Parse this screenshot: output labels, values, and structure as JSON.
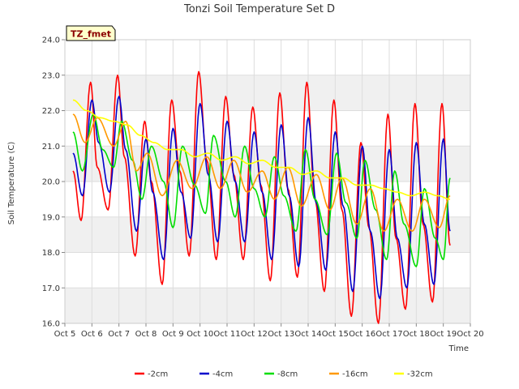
{
  "chart_data": {
    "type": "line",
    "title": "Tonzi Soil Temperature Set D",
    "xlabel": "Time",
    "ylabel": "Soil Temperature (C)",
    "badge": "TZ_fmet",
    "xlim": [
      5,
      20
    ],
    "ylim": [
      16.0,
      24.0
    ],
    "x_ticks": [
      {
        "v": 5,
        "label": "Oct 5"
      },
      {
        "v": 6,
        "label": "Oct 6"
      },
      {
        "v": 7,
        "label": "Oct 7"
      },
      {
        "v": 8,
        "label": "Oct 8"
      },
      {
        "v": 9,
        "label": "Oct 9"
      },
      {
        "v": 10,
        "label": "Oct 10"
      },
      {
        "v": 11,
        "label": "Oct 11"
      },
      {
        "v": 12,
        "label": "Oct 12"
      },
      {
        "v": 13,
        "label": "Oct 13"
      },
      {
        "v": 14,
        "label": "Oct 14"
      },
      {
        "v": 15,
        "label": "Oct 15"
      },
      {
        "v": 16,
        "label": "Oct 16"
      },
      {
        "v": 17,
        "label": "Oct 17"
      },
      {
        "v": 18,
        "label": "Oct 18"
      },
      {
        "v": 19,
        "label": "Oct 19"
      },
      {
        "v": 20,
        "label": "Oct 20"
      }
    ],
    "y_ticks": [
      {
        "v": 16,
        "label": "16.0"
      },
      {
        "v": 17,
        "label": "17.0"
      },
      {
        "v": 18,
        "label": "18.0"
      },
      {
        "v": 19,
        "label": "19.0"
      },
      {
        "v": 20,
        "label": "20.0"
      },
      {
        "v": 21,
        "label": "21.0"
      },
      {
        "v": 22,
        "label": "22.0"
      },
      {
        "v": 23,
        "label": "23.0"
      },
      {
        "v": 24,
        "label": "24.0"
      }
    ],
    "grid": true,
    "legend_position": "bottom",
    "series": [
      {
        "name": "-2cm",
        "color": "#ff0000",
        "x": [
          5.3,
          5.6,
          5.95,
          6.2,
          6.6,
          6.95,
          7.2,
          7.6,
          7.95,
          8.2,
          8.6,
          8.95,
          9.25,
          9.6,
          9.95,
          10.25,
          10.6,
          10.95,
          11.25,
          11.6,
          11.95,
          12.25,
          12.6,
          12.95,
          13.25,
          13.6,
          13.95,
          14.25,
          14.6,
          14.95,
          15.25,
          15.6,
          15.95,
          16.25,
          16.6,
          16.95,
          17.25,
          17.6,
          17.95,
          18.25,
          18.6,
          18.95,
          19.25
        ],
        "y": [
          20.3,
          18.9,
          22.8,
          20.4,
          19.2,
          23.0,
          20.7,
          17.9,
          21.7,
          20.0,
          17.1,
          22.3,
          20.3,
          17.9,
          23.1,
          20.6,
          17.8,
          22.4,
          20.2,
          17.8,
          22.1,
          19.9,
          17.2,
          22.5,
          19.8,
          17.3,
          22.8,
          19.5,
          16.9,
          22.3,
          19.2,
          16.2,
          21.1,
          18.7,
          16.0,
          21.9,
          18.4,
          16.4,
          22.2,
          18.8,
          16.6,
          22.2,
          18.2
        ]
      },
      {
        "name": "-4cm",
        "color": "#0000cc",
        "x": [
          5.3,
          5.65,
          6.0,
          6.25,
          6.65,
          7.0,
          7.25,
          7.65,
          8.0,
          8.25,
          8.65,
          9.0,
          9.3,
          9.65,
          10.0,
          10.3,
          10.65,
          11.0,
          11.3,
          11.65,
          12.0,
          12.3,
          12.65,
          13.0,
          13.3,
          13.65,
          14.0,
          14.3,
          14.65,
          15.0,
          15.3,
          15.65,
          16.0,
          16.3,
          16.65,
          17.0,
          17.3,
          17.65,
          18.0,
          18.3,
          18.65,
          19.0,
          19.25
        ],
        "y": [
          20.8,
          19.6,
          22.3,
          21.1,
          19.7,
          22.4,
          20.9,
          18.6,
          21.2,
          19.7,
          17.8,
          21.5,
          19.7,
          18.4,
          22.2,
          20.2,
          18.3,
          21.7,
          20.0,
          18.3,
          21.4,
          19.7,
          17.8,
          21.6,
          19.6,
          17.6,
          21.8,
          19.4,
          17.5,
          21.4,
          19.3,
          16.9,
          21.0,
          18.6,
          16.7,
          20.9,
          18.4,
          17.0,
          21.1,
          18.8,
          17.1,
          21.2,
          18.6
        ]
      },
      {
        "name": "-8cm",
        "color": "#00dd00",
        "x": [
          5.3,
          5.65,
          6.05,
          6.4,
          6.8,
          7.1,
          7.5,
          7.85,
          8.2,
          8.65,
          9.0,
          9.35,
          9.8,
          10.2,
          10.5,
          10.95,
          11.3,
          11.65,
          12.0,
          12.4,
          12.75,
          13.1,
          13.55,
          13.9,
          14.25,
          14.7,
          15.05,
          15.4,
          15.8,
          16.1,
          16.5,
          16.9,
          17.2,
          17.55,
          18.0,
          18.3,
          18.7,
          19.0,
          19.25
        ],
        "y": [
          21.4,
          20.3,
          21.9,
          20.9,
          20.4,
          21.7,
          20.6,
          19.5,
          21.0,
          20.0,
          18.7,
          21.0,
          19.9,
          19.1,
          21.3,
          20.0,
          19.0,
          21.0,
          19.8,
          19.0,
          20.7,
          19.6,
          18.6,
          20.9,
          19.5,
          18.5,
          20.8,
          19.4,
          18.4,
          20.6,
          19.2,
          17.8,
          20.3,
          18.8,
          17.6,
          19.8,
          18.4,
          17.8,
          20.1
        ]
      },
      {
        "name": "-16cm",
        "color": "#ff9900",
        "x": [
          5.3,
          5.75,
          6.2,
          6.8,
          7.25,
          7.65,
          8.05,
          8.6,
          9.15,
          9.7,
          10.25,
          10.75,
          11.25,
          11.75,
          12.3,
          12.75,
          13.25,
          13.75,
          14.3,
          14.8,
          15.25,
          15.8,
          16.3,
          16.8,
          17.3,
          17.85,
          18.3,
          18.85,
          19.25
        ],
        "y": [
          21.9,
          21.1,
          21.8,
          21.0,
          21.7,
          20.3,
          20.8,
          19.6,
          20.6,
          19.8,
          20.7,
          19.8,
          20.6,
          19.7,
          20.3,
          19.5,
          20.4,
          19.3,
          20.2,
          19.2,
          20.1,
          18.8,
          19.8,
          18.6,
          19.5,
          18.6,
          19.5,
          18.7,
          19.6
        ]
      },
      {
        "name": "-32cm",
        "color": "#ffff00",
        "x": [
          5.3,
          5.8,
          6.3,
          6.8,
          7.3,
          7.8,
          8.3,
          8.8,
          9.3,
          9.8,
          10.3,
          10.8,
          11.3,
          11.8,
          12.3,
          12.8,
          13.3,
          13.8,
          14.3,
          14.8,
          15.3,
          15.8,
          16.3,
          16.8,
          17.3,
          17.8,
          18.3,
          18.8,
          19.25
        ],
        "y": [
          22.3,
          22.0,
          21.8,
          21.7,
          21.6,
          21.3,
          21.1,
          20.9,
          20.9,
          20.7,
          20.8,
          20.6,
          20.7,
          20.5,
          20.6,
          20.4,
          20.4,
          20.2,
          20.3,
          20.1,
          20.1,
          19.9,
          19.9,
          19.8,
          19.7,
          19.6,
          19.7,
          19.6,
          19.5
        ]
      }
    ]
  }
}
